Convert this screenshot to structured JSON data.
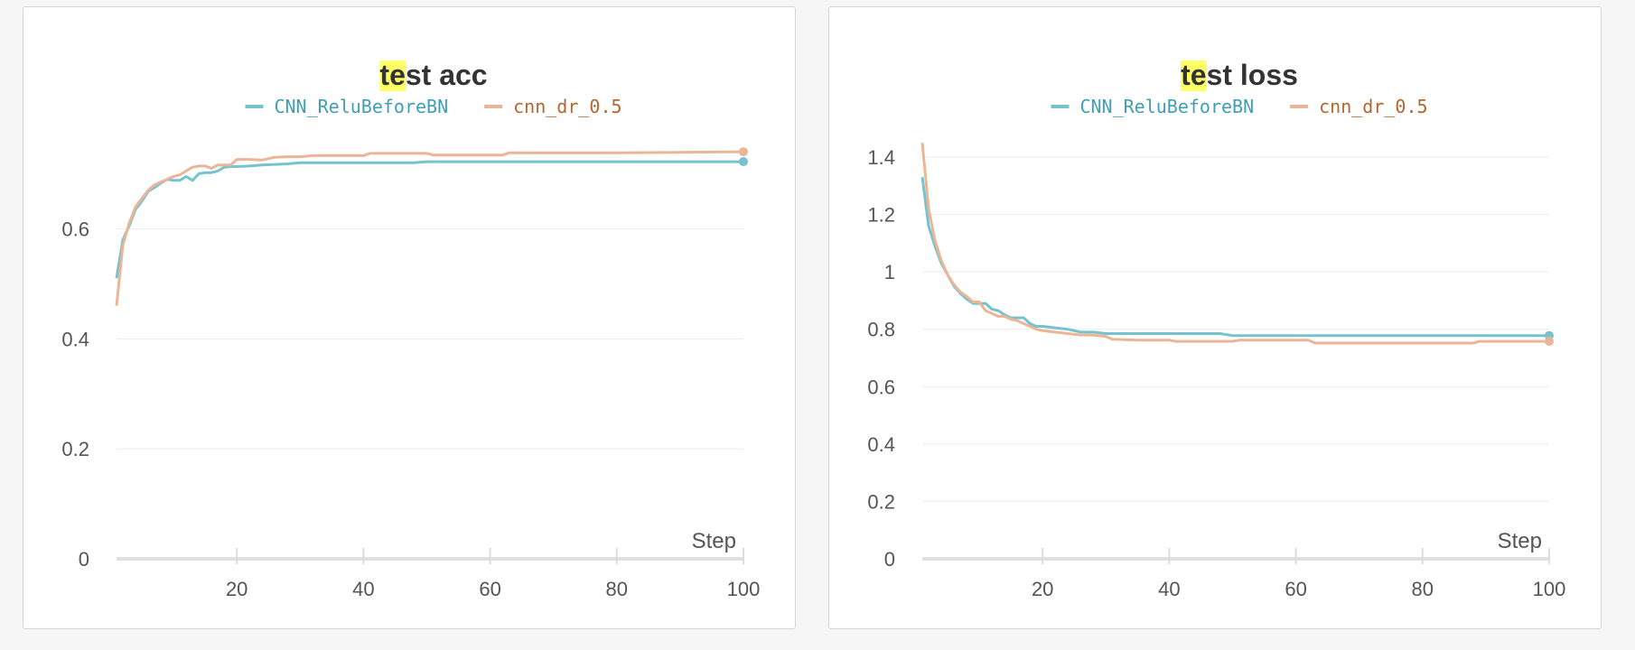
{
  "colors": {
    "series_a": "#76c3cf",
    "series_b": "#ebb697",
    "legend_a_text": "#3e9fb5",
    "legend_b_text": "#b5652f",
    "highlight": "#ffff66"
  },
  "chart_data": [
    {
      "type": "line",
      "title_highlight": "te",
      "title_rest": "st acc",
      "xlabel": "Step",
      "xlim": [
        1,
        100
      ],
      "ylim": [
        0,
        0.75
      ],
      "xticks": [
        "20",
        "40",
        "60",
        "80",
        "100"
      ],
      "yticks": [
        "0",
        "0.2",
        "0.4",
        "0.6"
      ],
      "legend_position": "top-center",
      "grid": true,
      "series": [
        {
          "name": "CNN_ReluBeforeBN",
          "points": [
            [
              1,
              0.51
            ],
            [
              2,
              0.58
            ],
            [
              3,
              0.605
            ],
            [
              4,
              0.635
            ],
            [
              5,
              0.65
            ],
            [
              6,
              0.668
            ],
            [
              7,
              0.675
            ],
            [
              8,
              0.683
            ],
            [
              9,
              0.69
            ],
            [
              10,
              0.688
            ],
            [
              11,
              0.688
            ],
            [
              12,
              0.695
            ],
            [
              13,
              0.688
            ],
            [
              14,
              0.7
            ],
            [
              15,
              0.702
            ],
            [
              16,
              0.702
            ],
            [
              17,
              0.705
            ],
            [
              18,
              0.712
            ],
            [
              19,
              0.713
            ],
            [
              20,
              0.713
            ],
            [
              22,
              0.714
            ],
            [
              24,
              0.716
            ],
            [
              26,
              0.717
            ],
            [
              28,
              0.718
            ],
            [
              30,
              0.72
            ],
            [
              35,
              0.72
            ],
            [
              40,
              0.72
            ],
            [
              45,
              0.72
            ],
            [
              48,
              0.72
            ],
            [
              50,
              0.722
            ],
            [
              60,
              0.722
            ],
            [
              70,
              0.722
            ],
            [
              80,
              0.722
            ],
            [
              90,
              0.722
            ],
            [
              100,
              0.722
            ]
          ]
        },
        {
          "name": "cnn_dr_0.5",
          "points": [
            [
              1,
              0.46
            ],
            [
              2,
              0.57
            ],
            [
              3,
              0.61
            ],
            [
              4,
              0.64
            ],
            [
              5,
              0.655
            ],
            [
              6,
              0.67
            ],
            [
              7,
              0.68
            ],
            [
              8,
              0.685
            ],
            [
              9,
              0.69
            ],
            [
              10,
              0.695
            ],
            [
              11,
              0.698
            ],
            [
              12,
              0.705
            ],
            [
              13,
              0.712
            ],
            [
              14,
              0.714
            ],
            [
              15,
              0.714
            ],
            [
              16,
              0.71
            ],
            [
              17,
              0.716
            ],
            [
              18,
              0.716
            ],
            [
              19,
              0.716
            ],
            [
              20,
              0.726
            ],
            [
              22,
              0.726
            ],
            [
              24,
              0.725
            ],
            [
              26,
              0.73
            ],
            [
              28,
              0.731
            ],
            [
              30,
              0.731
            ],
            [
              32,
              0.733
            ],
            [
              35,
              0.733
            ],
            [
              40,
              0.733
            ],
            [
              41,
              0.737
            ],
            [
              45,
              0.737
            ],
            [
              50,
              0.737
            ],
            [
              51,
              0.734
            ],
            [
              55,
              0.734
            ],
            [
              60,
              0.734
            ],
            [
              62,
              0.734
            ],
            [
              63,
              0.738
            ],
            [
              70,
              0.738
            ],
            [
              80,
              0.738
            ],
            [
              90,
              0.739
            ],
            [
              100,
              0.74
            ]
          ]
        }
      ]
    },
    {
      "type": "line",
      "title_highlight": "te",
      "title_rest": "st loss",
      "xlabel": "Step",
      "xlim": [
        1,
        100
      ],
      "ylim": [
        0,
        1.4
      ],
      "xticks": [
        "20",
        "40",
        "60",
        "80",
        "100"
      ],
      "yticks": [
        "0",
        "0.2",
        "0.4",
        "0.6",
        "0.8",
        "1",
        "1.2",
        "1.4"
      ],
      "legend_position": "top-center",
      "grid": true,
      "series": [
        {
          "name": "CNN_ReluBeforeBN",
          "points": [
            [
              1,
              1.33
            ],
            [
              2,
              1.16
            ],
            [
              3,
              1.09
            ],
            [
              4,
              1.03
            ],
            [
              5,
              0.99
            ],
            [
              6,
              0.95
            ],
            [
              7,
              0.925
            ],
            [
              8,
              0.905
            ],
            [
              9,
              0.89
            ],
            [
              10,
              0.89
            ],
            [
              11,
              0.89
            ],
            [
              12,
              0.87
            ],
            [
              13,
              0.865
            ],
            [
              14,
              0.85
            ],
            [
              15,
              0.84
            ],
            [
              16,
              0.84
            ],
            [
              17,
              0.84
            ],
            [
              18,
              0.82
            ],
            [
              19,
              0.81
            ],
            [
              20,
              0.81
            ],
            [
              22,
              0.805
            ],
            [
              24,
              0.8
            ],
            [
              26,
              0.79
            ],
            [
              28,
              0.79
            ],
            [
              30,
              0.785
            ],
            [
              32,
              0.785
            ],
            [
              35,
              0.785
            ],
            [
              40,
              0.785
            ],
            [
              45,
              0.785
            ],
            [
              48,
              0.785
            ],
            [
              50,
              0.778
            ],
            [
              60,
              0.778
            ],
            [
              70,
              0.778
            ],
            [
              80,
              0.778
            ],
            [
              90,
              0.778
            ],
            [
              100,
              0.778
            ]
          ]
        },
        {
          "name": "cnn_dr_0.5",
          "points": [
            [
              1,
              1.45
            ],
            [
              2,
              1.22
            ],
            [
              3,
              1.11
            ],
            [
              4,
              1.04
            ],
            [
              5,
              0.99
            ],
            [
              6,
              0.955
            ],
            [
              7,
              0.93
            ],
            [
              8,
              0.915
            ],
            [
              9,
              0.895
            ],
            [
              10,
              0.895
            ],
            [
              11,
              0.865
            ],
            [
              12,
              0.855
            ],
            [
              13,
              0.845
            ],
            [
              14,
              0.845
            ],
            [
              15,
              0.835
            ],
            [
              16,
              0.83
            ],
            [
              17,
              0.82
            ],
            [
              18,
              0.81
            ],
            [
              19,
              0.8
            ],
            [
              20,
              0.795
            ],
            [
              22,
              0.79
            ],
            [
              24,
              0.785
            ],
            [
              26,
              0.78
            ],
            [
              28,
              0.78
            ],
            [
              30,
              0.775
            ],
            [
              31,
              0.765
            ],
            [
              35,
              0.762
            ],
            [
              40,
              0.762
            ],
            [
              41,
              0.758
            ],
            [
              45,
              0.758
            ],
            [
              50,
              0.758
            ],
            [
              51,
              0.762
            ],
            [
              55,
              0.762
            ],
            [
              60,
              0.762
            ],
            [
              62,
              0.762
            ],
            [
              63,
              0.752
            ],
            [
              70,
              0.752
            ],
            [
              80,
              0.752
            ],
            [
              88,
              0.752
            ],
            [
              89,
              0.758
            ],
            [
              95,
              0.758
            ],
            [
              100,
              0.758
            ]
          ]
        }
      ]
    }
  ]
}
